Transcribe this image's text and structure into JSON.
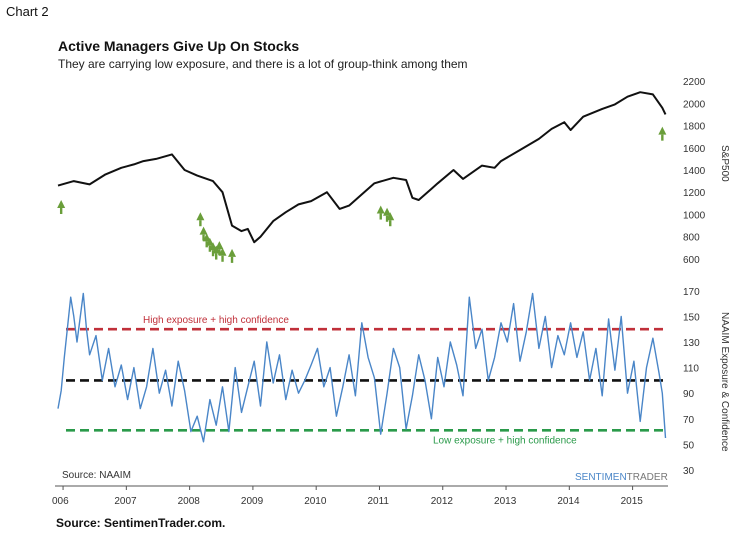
{
  "chart_label": "Chart 2",
  "footer": "Source: SentimenTrader.com.",
  "colors": {
    "spx_line": "#111111",
    "naaim_line": "#4a86c8",
    "arrow": "#6a9e3a",
    "high_line": "#c0303a",
    "mid_line": "#111111",
    "low_line": "#2a9a4a",
    "brand_blue": "#4a86c8",
    "brand_gray": "#777777"
  },
  "chart_data": {
    "type": "line",
    "title": "Active Managers Give Up On Stocks",
    "subtitle": "They are carrying low exposure, and there is a lot of group-think among them",
    "source_note": "Source: NAAIM",
    "brand": {
      "part1": "SENTIMEN",
      "part2": "TRADER"
    },
    "x_ticks": [
      "006",
      "2007",
      "2008",
      "2009",
      "2010",
      "2011",
      "2012",
      "2013",
      "2014",
      "2015"
    ],
    "xlim": [
      2006,
      2015.75
    ],
    "upper_panel": {
      "ylabel": "S&P500",
      "ylim": [
        500,
        2300
      ],
      "y_ticks": [
        600,
        800,
        1000,
        1200,
        1400,
        1600,
        1800,
        2000,
        2200
      ],
      "series": [
        {
          "name": "S&P500",
          "x": [
            2006.0,
            2006.25,
            2006.5,
            2006.75,
            2007.0,
            2007.2,
            2007.35,
            2007.55,
            2007.8,
            2008.0,
            2008.2,
            2008.45,
            2008.6,
            2008.75,
            2008.9,
            2009.0,
            2009.1,
            2009.2,
            2009.4,
            2009.6,
            2009.8,
            2010.0,
            2010.25,
            2010.45,
            2010.6,
            2010.8,
            2011.0,
            2011.3,
            2011.5,
            2011.6,
            2011.7,
            2011.9,
            2012.0,
            2012.25,
            2012.4,
            2012.7,
            2012.9,
            2013.0,
            2013.3,
            2013.6,
            2013.8,
            2014.0,
            2014.1,
            2014.3,
            2014.6,
            2014.8,
            2015.0,
            2015.2,
            2015.4,
            2015.55,
            2015.6
          ],
          "values": [
            1260,
            1300,
            1270,
            1360,
            1420,
            1450,
            1480,
            1500,
            1540,
            1400,
            1350,
            1300,
            1200,
            900,
            850,
            870,
            750,
            800,
            940,
            1020,
            1090,
            1120,
            1200,
            1050,
            1080,
            1180,
            1280,
            1330,
            1310,
            1150,
            1130,
            1230,
            1280,
            1400,
            1320,
            1440,
            1420,
            1480,
            1580,
            1680,
            1770,
            1830,
            1760,
            1880,
            1950,
            1990,
            2060,
            2100,
            2080,
            1960,
            1900
          ]
        }
      ],
      "buy_signals": [
        {
          "x": 2006.05,
          "y": 1130
        },
        {
          "x": 2008.25,
          "y": 1020
        },
        {
          "x": 2008.3,
          "y": 890
        },
        {
          "x": 2008.35,
          "y": 830
        },
        {
          "x": 2008.4,
          "y": 790
        },
        {
          "x": 2008.45,
          "y": 750
        },
        {
          "x": 2008.5,
          "y": 720
        },
        {
          "x": 2008.55,
          "y": 760
        },
        {
          "x": 2008.6,
          "y": 700
        },
        {
          "x": 2008.75,
          "y": 690
        },
        {
          "x": 2011.1,
          "y": 1080
        },
        {
          "x": 2011.2,
          "y": 1060
        },
        {
          "x": 2011.25,
          "y": 1020
        },
        {
          "x": 2015.55,
          "y": 1790
        }
      ]
    },
    "lower_panel": {
      "ylabel": "NAAIM Exposure & Confidence",
      "ylim": [
        30,
        180
      ],
      "y_ticks": [
        30,
        50,
        70,
        90,
        110,
        130,
        150,
        170
      ],
      "series": [
        {
          "name": "NAAIM Exposure & Confidence",
          "x": [
            2006.0,
            2006.05,
            2006.1,
            2006.2,
            2006.25,
            2006.3,
            2006.4,
            2006.45,
            2006.5,
            2006.6,
            2006.7,
            2006.8,
            2006.9,
            2007.0,
            2007.1,
            2007.2,
            2007.3,
            2007.4,
            2007.5,
            2007.6,
            2007.7,
            2007.8,
            2007.9,
            2008.0,
            2008.1,
            2008.2,
            2008.3,
            2008.4,
            2008.5,
            2008.6,
            2008.7,
            2008.8,
            2008.9,
            2009.0,
            2009.1,
            2009.2,
            2009.3,
            2009.4,
            2009.5,
            2009.6,
            2009.7,
            2009.8,
            2009.9,
            2010.0,
            2010.1,
            2010.2,
            2010.3,
            2010.4,
            2010.5,
            2010.6,
            2010.7,
            2010.8,
            2010.9,
            2011.0,
            2011.1,
            2011.2,
            2011.3,
            2011.4,
            2011.5,
            2011.6,
            2011.7,
            2011.8,
            2011.9,
            2012.0,
            2012.1,
            2012.2,
            2012.3,
            2012.4,
            2012.5,
            2012.6,
            2012.7,
            2012.8,
            2012.9,
            2013.0,
            2013.1,
            2013.2,
            2013.3,
            2013.4,
            2013.5,
            2013.6,
            2013.7,
            2013.8,
            2013.9,
            2014.0,
            2014.1,
            2014.2,
            2014.3,
            2014.4,
            2014.5,
            2014.6,
            2014.7,
            2014.8,
            2014.9,
            2015.0,
            2015.1,
            2015.2,
            2015.3,
            2015.4,
            2015.5,
            2015.55,
            2015.6
          ],
          "values": [
            78,
            92,
            118,
            165,
            150,
            130,
            168,
            140,
            120,
            135,
            100,
            125,
            95,
            112,
            85,
            110,
            78,
            95,
            125,
            90,
            108,
            80,
            115,
            92,
            60,
            72,
            52,
            85,
            65,
            95,
            60,
            110,
            75,
            95,
            115,
            80,
            130,
            98,
            120,
            85,
            108,
            90,
            100,
            112,
            125,
            95,
            110,
            72,
            95,
            120,
            88,
            145,
            118,
            102,
            58,
            90,
            125,
            110,
            62,
            88,
            120,
            100,
            70,
            118,
            95,
            130,
            112,
            88,
            165,
            125,
            140,
            100,
            118,
            145,
            130,
            160,
            115,
            138,
            168,
            125,
            150,
            110,
            135,
            120,
            145,
            118,
            138,
            100,
            125,
            88,
            148,
            108,
            150,
            90,
            115,
            68,
            110,
            133,
            105,
            90,
            55
          ]
        }
      ],
      "reference_lines": [
        {
          "y": 140,
          "label": "High exposure + high confidence"
        },
        {
          "y": 100,
          "label": ""
        },
        {
          "y": 61,
          "label": "Low exposure + high confidence"
        }
      ]
    }
  }
}
